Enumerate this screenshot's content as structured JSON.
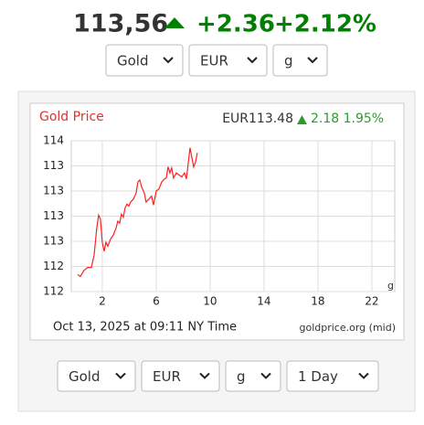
{
  "header": {
    "price": "113,56",
    "change": "+2.36",
    "change_pct": "+2.12%"
  },
  "top_selects": [
    "Gold",
    "EUR",
    "g"
  ],
  "chart_data": {
    "type": "line",
    "title": "Gold Price",
    "quote": "EUR113.48",
    "quote_change": "2.18 1.95%",
    "unit_label": "g",
    "caption": "Oct 13, 2025 at 09:11 NY Time",
    "source": "goldprice.org (mid)",
    "color": "#ff2020",
    "x": [
      0.17,
      0.37,
      0.64,
      0.92,
      1.19,
      1.39,
      1.59,
      1.73,
      1.86,
      2.0,
      2.14,
      2.27,
      2.41,
      2.61,
      2.81,
      3.02,
      3.15,
      3.29,
      3.42,
      3.56,
      3.69,
      3.83,
      3.97,
      4.1,
      4.31,
      4.51,
      4.64,
      4.78,
      4.92,
      5.12,
      5.25,
      5.46,
      5.66,
      5.8,
      6.0,
      6.2,
      6.41,
      6.61,
      6.75,
      6.88,
      7.02,
      7.15,
      7.29,
      7.49,
      7.69,
      7.9,
      8.1,
      8.24,
      8.37,
      8.51,
      8.64,
      8.78,
      8.92,
      9.05
    ],
    "values": [
      112.17,
      112.15,
      112.21,
      112.24,
      112.24,
      112.36,
      112.63,
      112.76,
      112.72,
      112.49,
      112.4,
      112.49,
      112.45,
      112.52,
      112.56,
      112.63,
      112.7,
      112.68,
      112.77,
      112.74,
      112.83,
      112.87,
      112.85,
      112.89,
      112.92,
      112.98,
      113.09,
      113.11,
      113.04,
      112.98,
      112.89,
      112.92,
      112.95,
      112.86,
      113.0,
      113.02,
      113.09,
      113.12,
      113.13,
      113.24,
      113.18,
      113.23,
      113.13,
      113.18,
      113.16,
      113.14,
      113.18,
      113.12,
      113.27,
      113.43,
      113.34,
      113.24,
      113.29,
      113.38
    ],
    "xlim": [
      -0.3,
      23.7
    ],
    "xticks": [
      2,
      6,
      10,
      14,
      18,
      22
    ],
    "ylim": [
      112,
      113.5
    ],
    "yticks": [
      {
        "value": 113.5,
        "label": "114"
      },
      {
        "value": 113.25,
        "label": "113"
      },
      {
        "value": 113.0,
        "label": "113"
      },
      {
        "value": 112.75,
        "label": "113"
      },
      {
        "value": 112.5,
        "label": "113"
      },
      {
        "value": 112.25,
        "label": "112"
      },
      {
        "value": 112.0,
        "label": "112"
      }
    ],
    "grid": true
  },
  "bottom_selects": [
    "Gold",
    "EUR",
    "g",
    "1 Day"
  ]
}
